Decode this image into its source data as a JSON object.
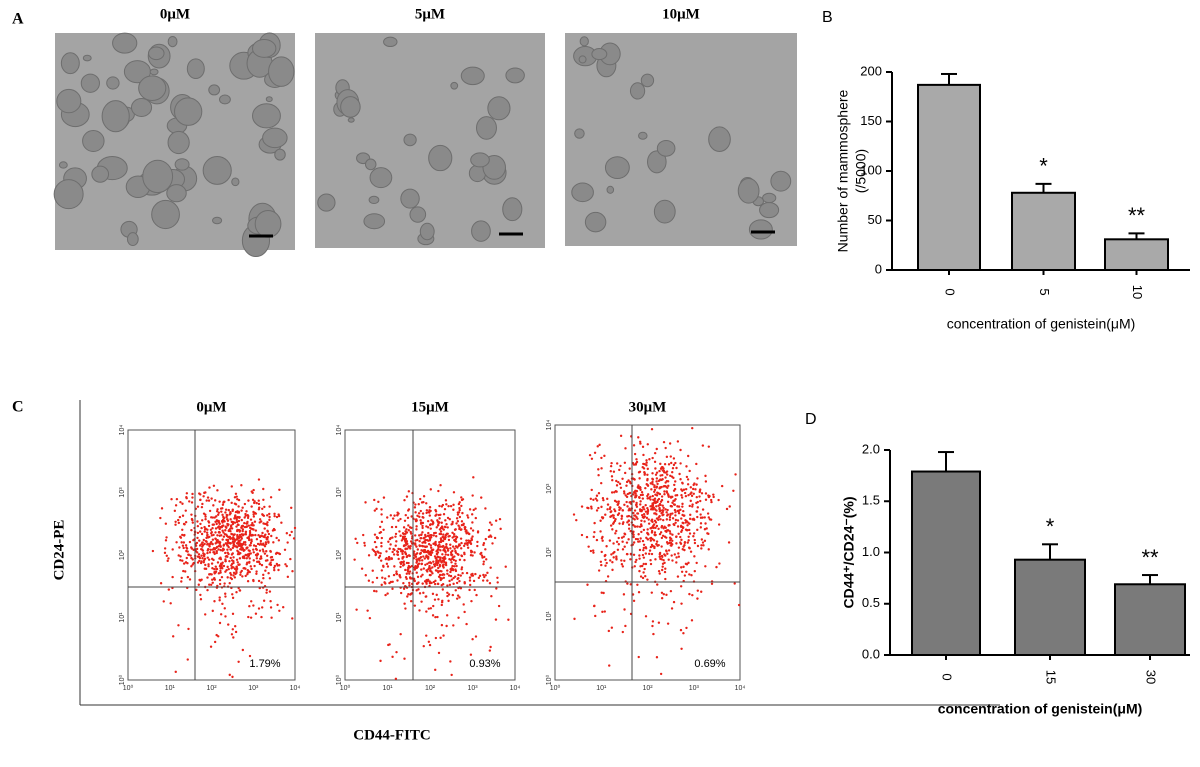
{
  "panel_a": {
    "label": "A",
    "images": [
      {
        "title": "0μM"
      },
      {
        "title": "5μM"
      },
      {
        "title": "10μM"
      }
    ]
  },
  "panel_c": {
    "label": "C",
    "y_label": "CD24-PE",
    "x_label": "CD44-FITC",
    "tick_labels": [
      "10⁰",
      "10¹",
      "10²",
      "10³",
      "10⁴"
    ],
    "plots": [
      {
        "title": "0μM",
        "percent": "1.79%"
      },
      {
        "title": "15μM",
        "percent": "0.93%"
      },
      {
        "title": "30μM",
        "percent": "0.69%"
      }
    ]
  },
  "chart_data": [
    {
      "type": "bar",
      "panel_label": "B",
      "y_label": "Number of mammosphere",
      "y_label_2": "(/5000)",
      "x_label": "concentration of genistein(μM)",
      "categories": [
        "0",
        "5",
        "10"
      ],
      "values": [
        187,
        78,
        31
      ],
      "errors": [
        11,
        9,
        6
      ],
      "color": "#a9a9a9",
      "ylim": [
        0,
        200
      ],
      "yticks": [
        0,
        50,
        100,
        150,
        200
      ],
      "annotations": [
        {
          "category": "5",
          "text": "*"
        },
        {
          "category": "10",
          "text": "**"
        }
      ]
    },
    {
      "type": "bar",
      "panel_label": "D",
      "y_label": "CD44⁺/CD24⁻(%)",
      "x_label": "concentration of genistein(μM)",
      "categories": [
        "0",
        "15",
        "30"
      ],
      "values": [
        1.79,
        0.93,
        0.69
      ],
      "errors": [
        0.19,
        0.15,
        0.09
      ],
      "color": "#7a7a7a",
      "ylim": [
        0,
        2
      ],
      "yticks": [
        {
          "value": 0,
          "label": "0.0"
        },
        {
          "value": 0.5,
          "label": "0.5"
        },
        {
          "value": 1,
          "label": "1.0"
        },
        {
          "value": 1.5,
          "label": "1.5"
        },
        {
          "value": 2,
          "label": "2.0"
        }
      ],
      "annotations": [
        {
          "category": "15",
          "text": "*"
        },
        {
          "category": "30",
          "text": "**"
        }
      ]
    }
  ]
}
